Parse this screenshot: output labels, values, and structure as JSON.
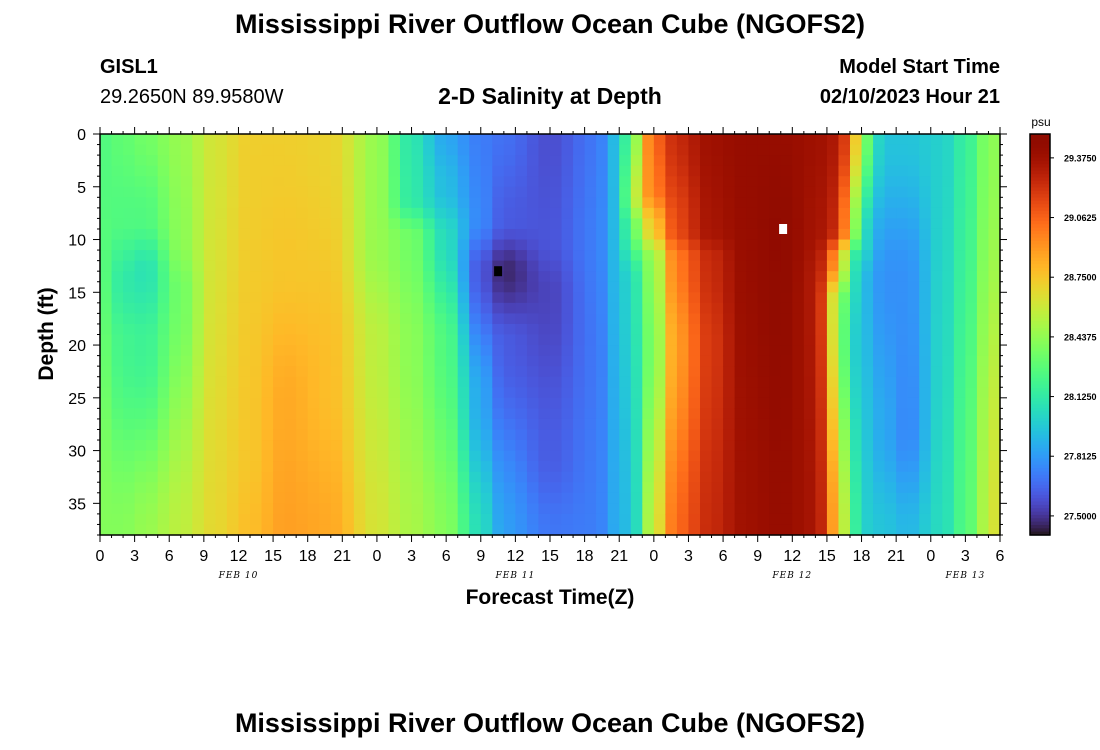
{
  "header": {
    "title": "Mississippi River Outflow Ocean Cube (NGOFS2)",
    "station_id": "GISL1",
    "station_coords": "29.2650N  89.9580W",
    "subtitle": "2-D Salinity at Depth",
    "model_start_label": "Model Start Time",
    "model_start_value": "02/10/2023 Hour 21"
  },
  "footer": {
    "repeat_title": "Mississippi River Outflow Ocean Cube (NGOFS2)"
  },
  "chart_data": {
    "type": "heatmap",
    "title": "2-D Salinity at Depth",
    "xlabel": "Forecast Time(Z)",
    "ylabel": "Depth (ft)",
    "x_tick_labels": [
      "0",
      "3",
      "6",
      "9",
      "12",
      "15",
      "18",
      "21",
      "0",
      "3",
      "6",
      "9",
      "12",
      "15",
      "18",
      "21",
      "0",
      "3",
      "6",
      "9",
      "12",
      "15",
      "18",
      "21",
      "0",
      "3",
      "6"
    ],
    "date_labels": [
      {
        "label": "FEB 10",
        "hour": 12
      },
      {
        "label": "FEB 11",
        "hour": 36
      },
      {
        "label": "FEB 12",
        "hour": 60
      },
      {
        "label": "FEB 13",
        "hour": 75
      }
    ],
    "x_range_hours": [
      0,
      78
    ],
    "y_ticks": [
      0,
      5,
      10,
      15,
      20,
      25,
      30,
      35
    ],
    "y_range": [
      0,
      38
    ],
    "y_inverted": true,
    "colorbar": {
      "unit": "psu",
      "tick_labels": [
        "29.3750",
        "29.0625",
        "28.7500",
        "28.4375",
        "28.1250",
        "27.8125",
        "27.5000"
      ],
      "range": [
        27.4,
        29.5
      ],
      "colormap": "turbo"
    },
    "columns": [
      {
        "hour": 0,
        "profile": [
          [
            0,
            28.25
          ],
          [
            38,
            28.4
          ]
        ]
      },
      {
        "hour": 2,
        "profile": [
          [
            0,
            28.3
          ],
          [
            8,
            28.25
          ],
          [
            14,
            28.12
          ],
          [
            20,
            28.2
          ],
          [
            38,
            28.4
          ]
        ]
      },
      {
        "hour": 4,
        "profile": [
          [
            0,
            28.35
          ],
          [
            8,
            28.25
          ],
          [
            13,
            28.08
          ],
          [
            20,
            28.18
          ],
          [
            38,
            28.45
          ]
        ]
      },
      {
        "hour": 7,
        "profile": [
          [
            0,
            28.45
          ],
          [
            10,
            28.42
          ],
          [
            15,
            28.35
          ],
          [
            38,
            28.55
          ]
        ]
      },
      {
        "hour": 10,
        "profile": [
          [
            0,
            28.62
          ],
          [
            38,
            28.68
          ]
        ]
      },
      {
        "hour": 13,
        "profile": [
          [
            0,
            28.72
          ],
          [
            30,
            28.75
          ],
          [
            38,
            28.78
          ]
        ]
      },
      {
        "hour": 16,
        "profile": [
          [
            0,
            28.72
          ],
          [
            12,
            28.75
          ],
          [
            26,
            28.85
          ],
          [
            38,
            28.88
          ]
        ]
      },
      {
        "hour": 20,
        "profile": [
          [
            0,
            28.7
          ],
          [
            24,
            28.78
          ],
          [
            38,
            28.85
          ]
        ]
      },
      {
        "hour": 24,
        "profile": [
          [
            0,
            28.45
          ],
          [
            10,
            28.45
          ],
          [
            20,
            28.55
          ],
          [
            38,
            28.62
          ]
        ]
      },
      {
        "hour": 27,
        "profile": [
          [
            0,
            28.1
          ],
          [
            6,
            28.12
          ],
          [
            10,
            28.35
          ],
          [
            20,
            28.42
          ],
          [
            38,
            28.5
          ]
        ]
      },
      {
        "hour": 30,
        "profile": [
          [
            0,
            27.85
          ],
          [
            5,
            27.92
          ],
          [
            10,
            28.05
          ],
          [
            20,
            28.25
          ],
          [
            38,
            28.4
          ]
        ]
      },
      {
        "hour": 33,
        "profile": [
          [
            0,
            27.72
          ],
          [
            8,
            27.75
          ],
          [
            13,
            27.6
          ],
          [
            25,
            27.85
          ],
          [
            38,
            28.05
          ]
        ]
      },
      {
        "hour": 35,
        "profile": [
          [
            0,
            27.68
          ],
          [
            8,
            27.62
          ],
          [
            13,
            27.46
          ],
          [
            20,
            27.62
          ],
          [
            38,
            27.82
          ]
        ]
      },
      {
        "hour": 39,
        "profile": [
          [
            0,
            27.58
          ],
          [
            10,
            27.6
          ],
          [
            15,
            27.55
          ],
          [
            30,
            27.62
          ],
          [
            38,
            27.7
          ]
        ]
      },
      {
        "hour": 43,
        "profile": [
          [
            0,
            27.7
          ],
          [
            10,
            27.72
          ],
          [
            20,
            27.7
          ],
          [
            38,
            27.72
          ]
        ]
      },
      {
        "hour": 45,
        "profile": [
          [
            0,
            27.95
          ],
          [
            38,
            27.88
          ]
        ]
      },
      {
        "hour": 46,
        "profile": [
          [
            0,
            28.35
          ],
          [
            6,
            28.5
          ],
          [
            9,
            28.3
          ],
          [
            14,
            28.05
          ],
          [
            38,
            27.95
          ]
        ]
      },
      {
        "hour": 48,
        "profile": [
          [
            0,
            29.05
          ],
          [
            5,
            29.0
          ],
          [
            9,
            28.75
          ],
          [
            12,
            28.45
          ],
          [
            20,
            28.4
          ],
          [
            38,
            28.6
          ]
        ]
      },
      {
        "hour": 50,
        "profile": [
          [
            0,
            29.25
          ],
          [
            9,
            29.15
          ],
          [
            12,
            29.0
          ],
          [
            20,
            28.9
          ],
          [
            38,
            29.05
          ]
        ]
      },
      {
        "hour": 53,
        "profile": [
          [
            0,
            29.38
          ],
          [
            9,
            29.35
          ],
          [
            12,
            29.25
          ],
          [
            20,
            29.2
          ],
          [
            38,
            29.25
          ]
        ]
      },
      {
        "hour": 56,
        "profile": [
          [
            0,
            29.42
          ],
          [
            38,
            29.38
          ]
        ]
      },
      {
        "hour": 59,
        "profile": [
          [
            0,
            29.42
          ],
          [
            9,
            29.46
          ],
          [
            38,
            29.42
          ]
        ]
      },
      {
        "hour": 62,
        "profile": [
          [
            0,
            29.38
          ],
          [
            9,
            29.36
          ],
          [
            14,
            29.32
          ],
          [
            38,
            29.35
          ]
        ]
      },
      {
        "hour": 64,
        "profile": [
          [
            0,
            29.32
          ],
          [
            9,
            29.25
          ],
          [
            12,
            28.9
          ],
          [
            16,
            28.5
          ],
          [
            38,
            28.8
          ]
        ]
      },
      {
        "hour": 65,
        "profile": [
          [
            0,
            29.05
          ],
          [
            9,
            28.75
          ],
          [
            12,
            28.2
          ],
          [
            20,
            28.05
          ],
          [
            38,
            28.3
          ]
        ]
      },
      {
        "hour": 66,
        "profile": [
          [
            0,
            28.4
          ],
          [
            10,
            28.05
          ],
          [
            14,
            27.92
          ],
          [
            38,
            28.0
          ]
        ]
      },
      {
        "hour": 68,
        "profile": [
          [
            0,
            27.95
          ],
          [
            14,
            27.78
          ],
          [
            28,
            27.85
          ],
          [
            38,
            27.95
          ]
        ]
      },
      {
        "hour": 70,
        "profile": [
          [
            0,
            27.95
          ],
          [
            14,
            27.78
          ],
          [
            28,
            27.75
          ],
          [
            38,
            27.9
          ]
        ]
      },
      {
        "hour": 73,
        "profile": [
          [
            0,
            28.0
          ],
          [
            20,
            28.02
          ],
          [
            38,
            28.05
          ]
        ]
      },
      {
        "hour": 75,
        "profile": [
          [
            0,
            28.15
          ],
          [
            38,
            28.25
          ]
        ]
      },
      {
        "hour": 77,
        "profile": [
          [
            0,
            28.4
          ],
          [
            38,
            28.55
          ]
        ]
      },
      {
        "hour": 78,
        "profile": [
          [
            0,
            28.45
          ],
          [
            38,
            28.7
          ]
        ]
      }
    ],
    "markers": [
      {
        "name": "minimum",
        "hour": 34.5,
        "depth": 13,
        "color": "#000000"
      },
      {
        "name": "maximum",
        "hour": 59.2,
        "depth": 9,
        "color": "#ffffff"
      }
    ]
  }
}
